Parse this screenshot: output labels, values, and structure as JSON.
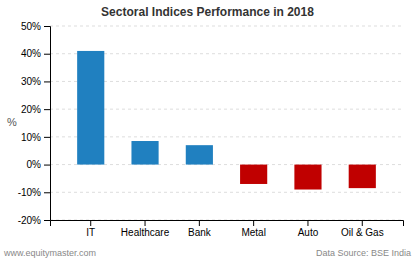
{
  "chart_data": {
    "type": "bar",
    "title": "Sectoral Indices Performance in 2018",
    "categories": [
      "IT",
      "Healthcare",
      "Bank",
      "Metal",
      "Auto",
      "Oil & Gas"
    ],
    "values": [
      41.0,
      8.5,
      7.0,
      -7.0,
      -9.0,
      -8.5
    ],
    "colors": [
      "#2080c0",
      "#2080c0",
      "#2080c0",
      "#c00000",
      "#c00000",
      "#c00000"
    ],
    "ylabel": "%",
    "ylim": [
      -20,
      50
    ],
    "yticks": [
      {
        "value": -20,
        "label": "-20%"
      },
      {
        "value": -10,
        "label": "-10%"
      },
      {
        "value": 0,
        "label": "0%"
      },
      {
        "value": 10,
        "label": "10%"
      },
      {
        "value": 20,
        "label": "20%"
      },
      {
        "value": 30,
        "label": "30%"
      },
      {
        "value": 40,
        "label": "40%"
      },
      {
        "value": 50,
        "label": "50%"
      }
    ],
    "grid": true,
    "annotations": [
      "www.equitymaster.com",
      "Data Source: BSE India"
    ]
  }
}
